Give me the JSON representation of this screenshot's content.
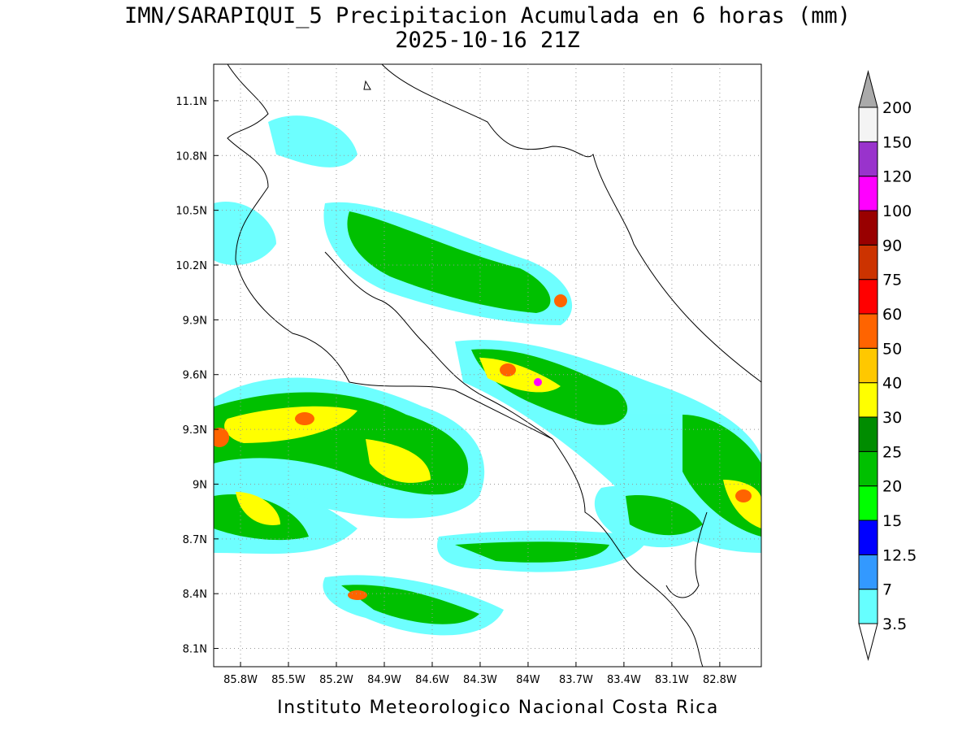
{
  "map": {
    "title": "IMN/SARAPIQUI_5 Precipitacion Acumulada en 6 horas (mm)",
    "subtitle": "2025-10-16 21Z",
    "footer": "Instituto Meteorologico Nacional Costa Rica",
    "xlim": [
      -85.968,
      -82.54
    ],
    "ylim": [
      8.0,
      11.3
    ],
    "xticks": [
      {
        "value": -85.8,
        "label": "85.8W"
      },
      {
        "value": -85.5,
        "label": "85.5W"
      },
      {
        "value": -85.2,
        "label": "85.2W"
      },
      {
        "value": -84.9,
        "label": "84.9W"
      },
      {
        "value": -84.6,
        "label": "84.6W"
      },
      {
        "value": -84.3,
        "label": "84.3W"
      },
      {
        "value": -84,
        "label": "84W"
      },
      {
        "value": -83.7,
        "label": "83.7W"
      },
      {
        "value": -83.4,
        "label": "83.4W"
      },
      {
        "value": -83.1,
        "label": "83.1W"
      },
      {
        "value": -82.8,
        "label": "82.8W"
      }
    ],
    "yticks": [
      {
        "value": 8.1,
        "label": "8.1N"
      },
      {
        "value": 8.4,
        "label": "8.4N"
      },
      {
        "value": 8.7,
        "label": "8.7N"
      },
      {
        "value": 9,
        "label": "9N"
      },
      {
        "value": 9.3,
        "label": "9.3N"
      },
      {
        "value": 9.6,
        "label": "9.6N"
      },
      {
        "value": 9.9,
        "label": "9.9N"
      },
      {
        "value": 10.2,
        "label": "10.2N"
      },
      {
        "value": 10.5,
        "label": "10.5N"
      },
      {
        "value": 10.8,
        "label": "10.8N"
      },
      {
        "value": 11.1,
        "label": "11.1N"
      }
    ],
    "grid": true,
    "colorbar": {
      "levels": [
        3.5,
        7,
        12.5,
        15,
        20,
        25,
        30,
        40,
        50,
        60,
        75,
        90,
        100,
        120,
        150,
        200
      ],
      "colors": [
        "#66ffff",
        "#3399ff",
        "#0000ff",
        "#00ff00",
        "#00c000",
        "#008c00",
        "#ffff00",
        "#ffc800",
        "#ff6400",
        "#ff0000",
        "#cc3300",
        "#990000",
        "#ff00ff",
        "#9933cc",
        "#f4f4f4"
      ],
      "over_color": "#aaaaaa",
      "under_color": "#ffffff"
    }
  }
}
